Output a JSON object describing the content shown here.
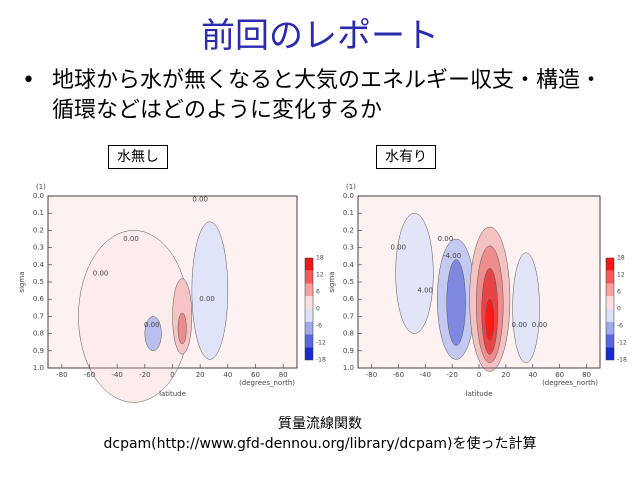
{
  "title": "前回のレポート",
  "bullet": "地球から水が無くなると大気のエネルギー収支・構造・循環などはどのように変化するか",
  "panels": [
    {
      "label": "水無し",
      "corner": "(1)",
      "y_axis_label": "sigma",
      "x_axis_label": "latitude",
      "x_unit": "(degrees_north)",
      "yticks": [
        "0.0",
        "0.1",
        "0.2",
        "0.3",
        "0.4",
        "0.5",
        "0.6",
        "0.7",
        "0.8",
        "0.9",
        "1.0"
      ],
      "xticks": [
        -80,
        -60,
        -40,
        -20,
        0,
        20,
        40,
        60,
        80
      ],
      "colorbar_ticks": [
        18,
        12,
        6,
        0,
        -6,
        -12,
        -18
      ],
      "contour_labels": [
        "0.00",
        "0.00",
        "0.00",
        "0.00",
        "0.00"
      ]
    },
    {
      "label": "水有り",
      "corner": "(1)",
      "y_axis_label": "sigma",
      "x_axis_label": "latitude",
      "x_unit": "(degrees_north)",
      "yticks": [
        "0.0",
        "0.1",
        "0.2",
        "0.3",
        "0.4",
        "0.5",
        "0.6",
        "0.7",
        "0.8",
        "0.9",
        "1.0"
      ],
      "xticks": [
        -80,
        -60,
        -40,
        -20,
        0,
        20,
        40,
        60,
        80
      ],
      "colorbar_ticks": [
        18,
        12,
        6,
        0,
        -6,
        -12,
        -18
      ],
      "contour_labels": [
        "0.00",
        "0.00",
        "4.00",
        "-4.00",
        "0.00",
        "0.00"
      ]
    }
  ],
  "caption": [
    "質量流線関数",
    "dcpam(http://www.gfd-dennou.org/library/dcpam)を使った計算"
  ]
}
